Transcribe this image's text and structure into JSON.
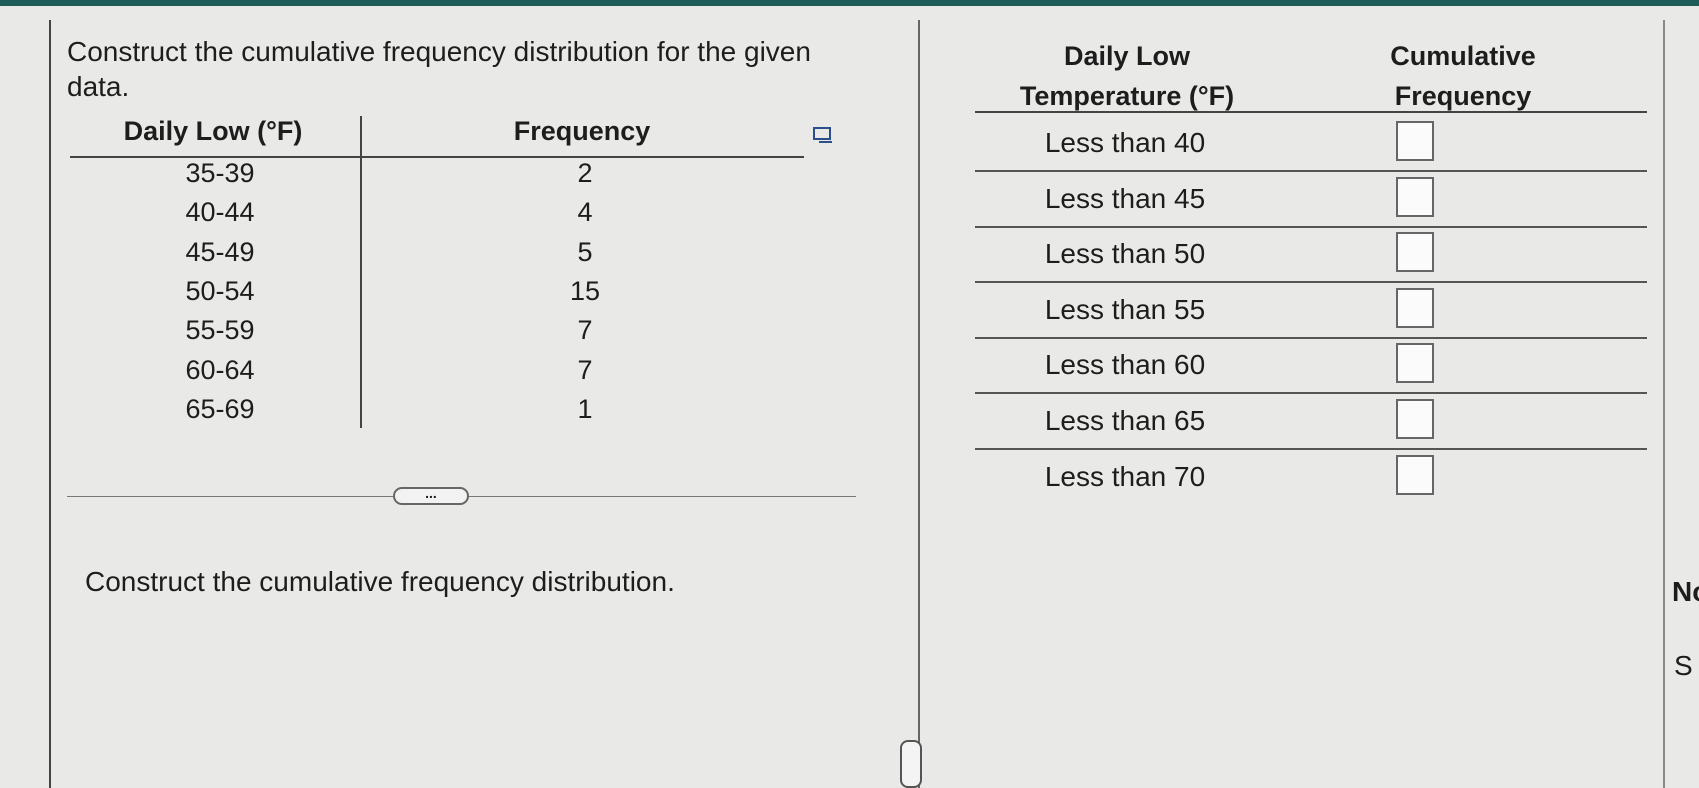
{
  "question": {
    "text": "Construct the cumulative frequency distribution for the given data."
  },
  "data_table": {
    "headers": [
      "Daily Low (°F)",
      "Frequency"
    ],
    "rows": [
      [
        "35-39",
        2
      ],
      [
        "40-44",
        4
      ],
      [
        "45-49",
        5
      ],
      [
        "50-54",
        15
      ],
      [
        "55-59",
        7
      ],
      [
        "60-64",
        7
      ],
      [
        "65-69",
        1
      ]
    ]
  },
  "expand_button": {
    "label": "..."
  },
  "instruction": {
    "text": "Construct the cumulative frequency distribution."
  },
  "answer_table": {
    "headers": [
      "Daily Low Temperature (°F)",
      "Cumulative Frequency"
    ],
    "rows": [
      "Less than 40",
      "Less than 45",
      "Less than 50",
      "Less than 55",
      "Less than 60",
      "Less than 65",
      "Less than 70"
    ]
  },
  "edge_text": [
    "Nc",
    "S"
  ]
}
